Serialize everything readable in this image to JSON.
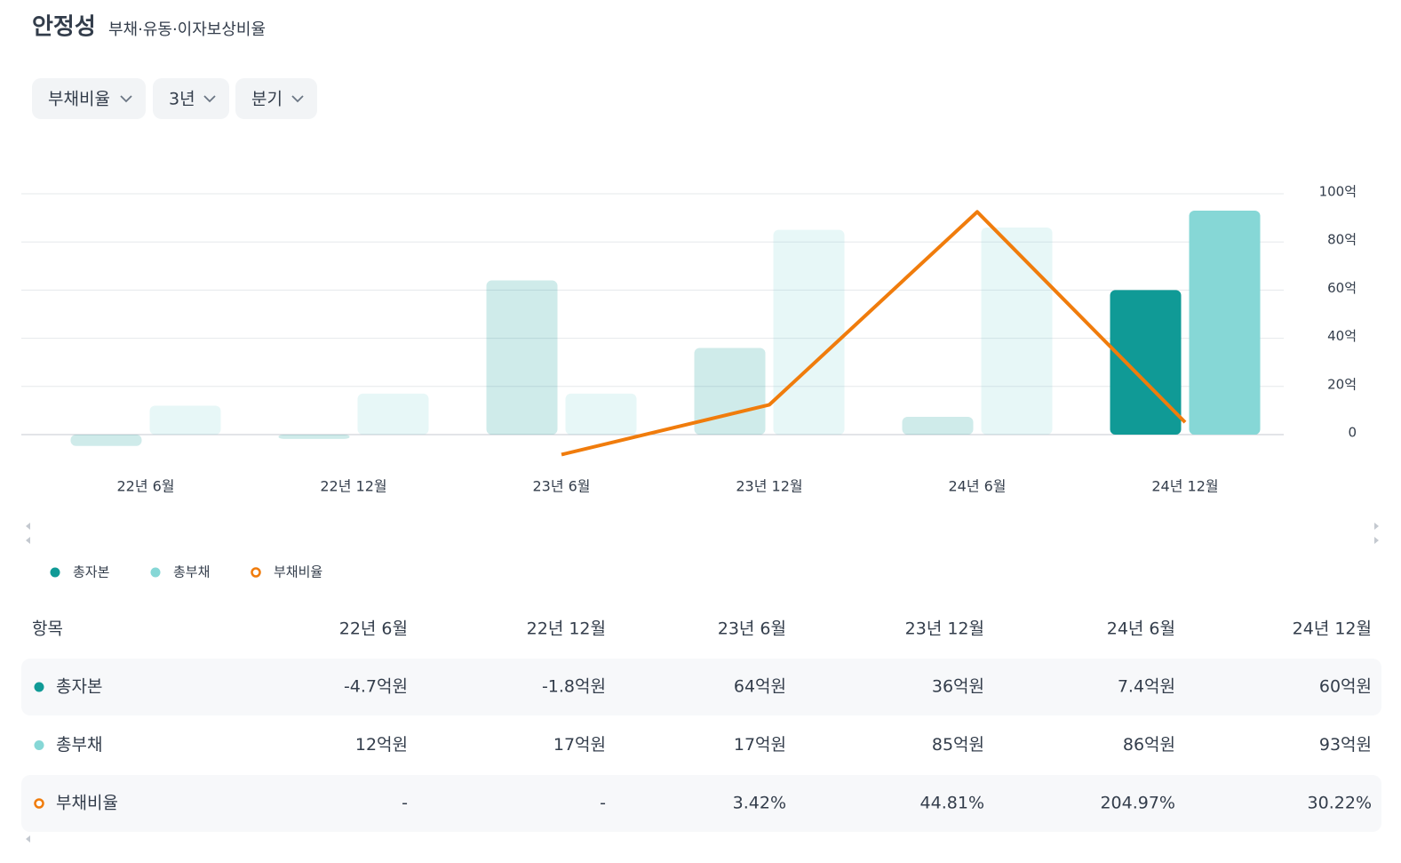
{
  "header": {
    "title": "안정성",
    "subtitle": "부채·유동·이자보상비율"
  },
  "filters": [
    "부채비율",
    "3년",
    "분기"
  ],
  "chart_data": {
    "type": "bar",
    "categories": [
      "22년 6월",
      "22년 12월",
      "23년 6월",
      "23년 12월",
      "24년 6월",
      "24년 12월"
    ],
    "series": [
      {
        "name": "총자본",
        "color": "#109a96",
        "values": [
          -4.7,
          -1.8,
          64,
          36,
          7.4,
          60
        ]
      },
      {
        "name": "총부채",
        "color": "#86d7d6",
        "values": [
          12,
          17,
          17,
          85,
          86,
          93
        ]
      },
      {
        "name": "부채비율",
        "color": "#f07c0c",
        "type": "line",
        "axis": "y2",
        "values": [
          null,
          null,
          3.42,
          44.81,
          204.97,
          30.22
        ]
      }
    ],
    "ylim": [
      0,
      100
    ],
    "yticks": [
      0,
      {
        "value": 20,
        "label": "20억"
      },
      {
        "value": 40,
        "label": "40억"
      },
      {
        "value": 60,
        "label": "60억"
      },
      {
        "value": 80,
        "label": "80억"
      },
      {
        "value": 100,
        "label": "100억"
      }
    ],
    "y2lim": [
      20,
      220
    ],
    "grid": true,
    "legend": "bottom-left"
  },
  "table": {
    "header": "항목",
    "columns": [
      "22년 6월",
      "22년 12월",
      "23년 6월",
      "23년 12월",
      "24년 6월",
      "24년 12월"
    ],
    "rows": [
      {
        "name": "총자본",
        "cells": [
          "-4.7억원",
          "-1.8억원",
          "64억원",
          "36억원",
          "7.4억원",
          "60억원"
        ]
      },
      {
        "name": "총부채",
        "cells": [
          "12억원",
          "17억원",
          "17억원",
          "85억원",
          "86억원",
          "93억원"
        ]
      },
      {
        "name": "부채비율",
        "cells": [
          "-",
          "-",
          "3.42%",
          "44.81%",
          "204.97%",
          "30.22%"
        ]
      }
    ]
  }
}
